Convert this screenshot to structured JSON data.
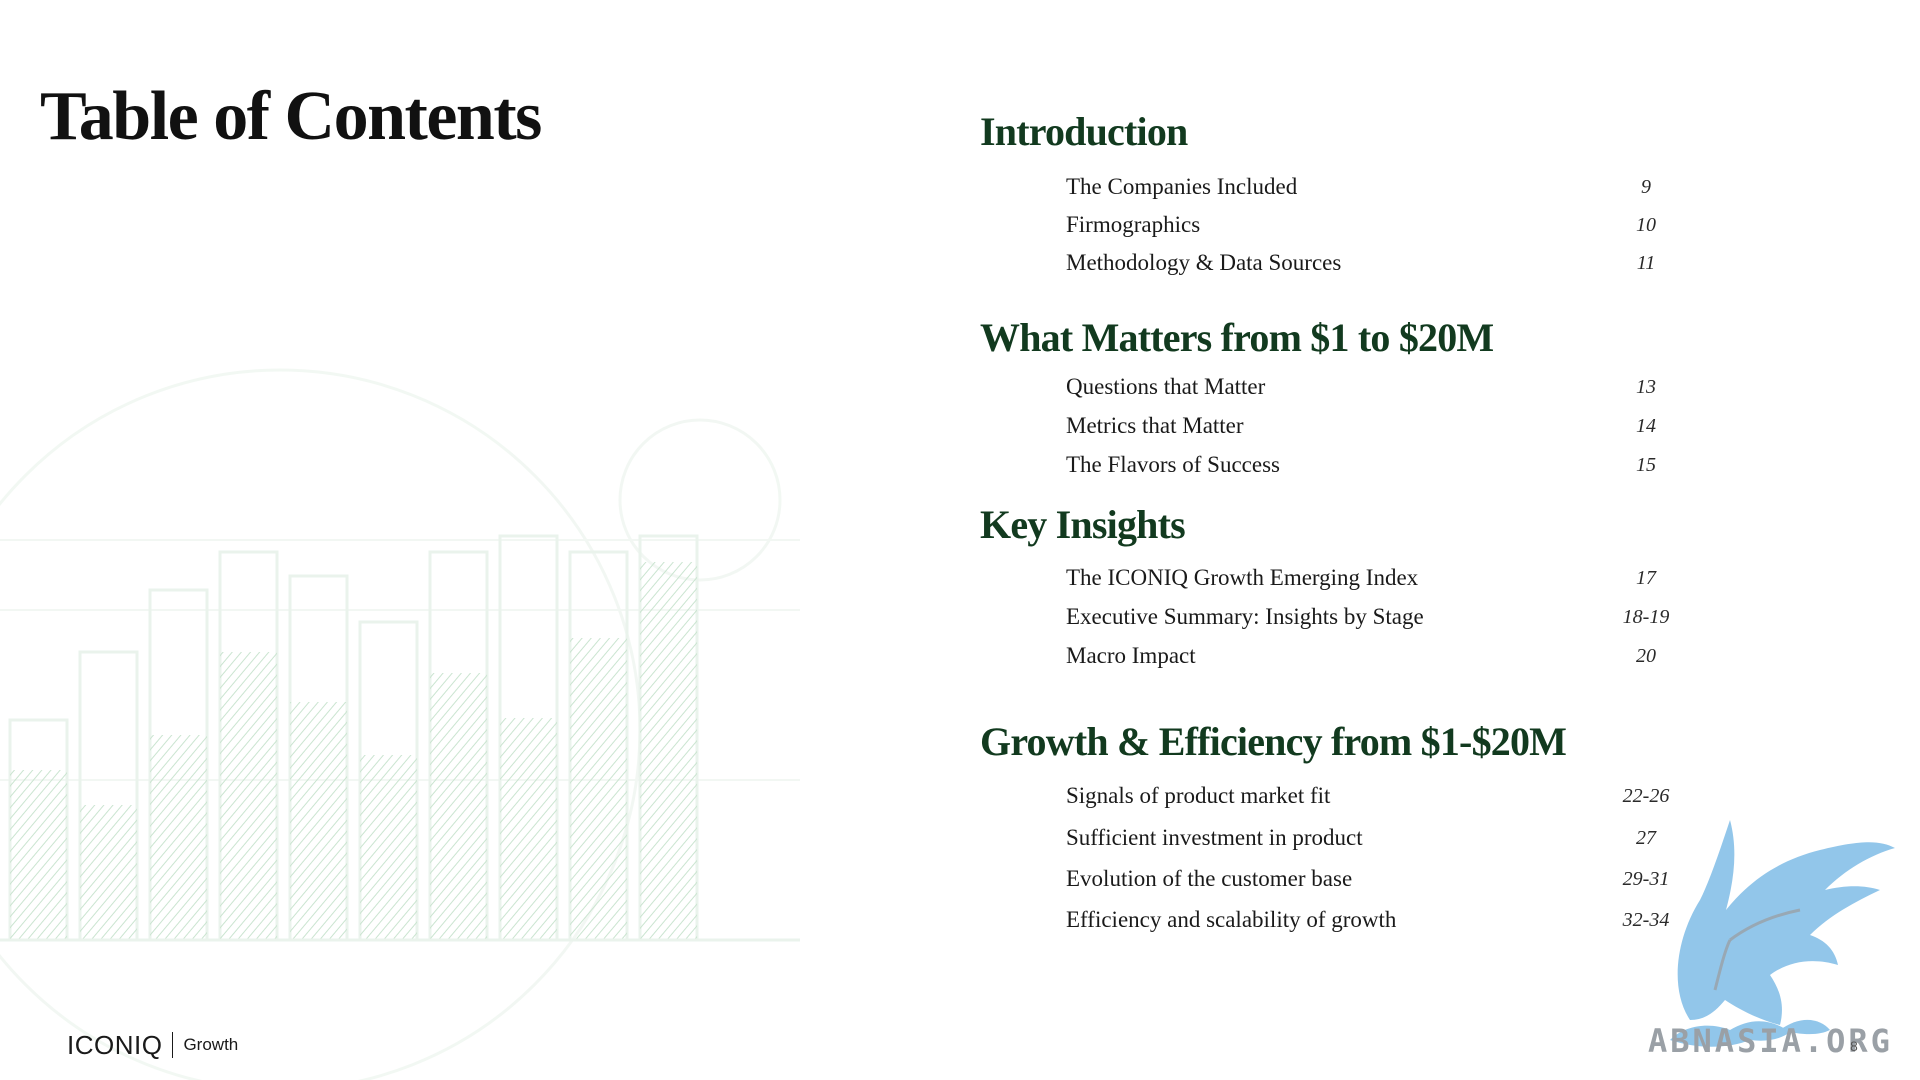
{
  "page": {
    "title": "Table of Contents",
    "number": "8"
  },
  "toc": {
    "sections": [
      {
        "title": "Introduction",
        "entries": [
          {
            "label": "The Companies Included",
            "page": "9"
          },
          {
            "label": "Firmographics",
            "page": "10"
          },
          {
            "label": "Methodology & Data Sources",
            "page": "11"
          }
        ]
      },
      {
        "title": "What Matters from $1 to $20M",
        "entries": [
          {
            "label": "Questions that Matter",
            "page": "13"
          },
          {
            "label": "Metrics that Matter",
            "page": "14"
          },
          {
            "label": "The Flavors of Success",
            "page": "15"
          }
        ]
      },
      {
        "title": "Key Insights",
        "entries": [
          {
            "label": "The ICONIQ Growth Emerging Index",
            "page": "17"
          },
          {
            "label": "Executive Summary: Insights by Stage",
            "page": "18-19"
          },
          {
            "label": "Macro Impact",
            "page": "20"
          }
        ]
      },
      {
        "title": "Growth & Efficiency from $1-$20M",
        "entries": [
          {
            "label": "Signals of product market fit",
            "page": "22-26"
          },
          {
            "label": "Sufficient investment in product",
            "page": "27"
          },
          {
            "label": "Evolution of the customer base",
            "page": "29-31"
          },
          {
            "label": "Efficiency and scalability of growth",
            "page": "32-34"
          }
        ]
      }
    ]
  },
  "footer": {
    "logo_main": "ICONIQ",
    "logo_sub": "Growth"
  },
  "watermark": {
    "text": "ABNASIA.ORG"
  },
  "colors": {
    "section_heading": "#123a1f",
    "background_art": "#cfe6d4",
    "watermark": "#86c0e8"
  }
}
